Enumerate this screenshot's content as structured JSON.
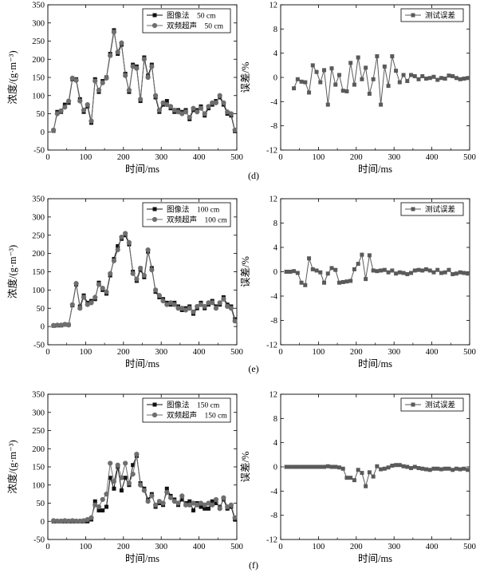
{
  "colors": {
    "image_method": "#111111",
    "ultrasound": "#6e6e6e",
    "error": "#5a5a5a",
    "axis": "#000000"
  },
  "rows": [
    {
      "panel_label": "(d)"
    },
    {
      "panel_label": "(e)"
    },
    {
      "panel_label": "(f)"
    }
  ],
  "chart_data": [
    {
      "type": "line",
      "grid": false,
      "legend_position": "top-right",
      "xlabel": "时间/ms",
      "ylabel": "浓度/(g·m⁻³)",
      "xlim": [
        0,
        500
      ],
      "ylim": [
        -50,
        350
      ],
      "xticks": [
        0,
        100,
        200,
        300,
        400,
        500
      ],
      "yticks": [
        -50,
        0,
        50,
        100,
        150,
        200,
        250,
        300,
        350
      ],
      "x": [
        15,
        25,
        35,
        45,
        55,
        65,
        75,
        85,
        95,
        105,
        115,
        125,
        135,
        145,
        155,
        165,
        175,
        185,
        195,
        205,
        215,
        225,
        235,
        245,
        255,
        265,
        275,
        285,
        295,
        305,
        315,
        325,
        335,
        345,
        355,
        365,
        375,
        385,
        395,
        405,
        415,
        425,
        435,
        445,
        455,
        465,
        475,
        485,
        495
      ],
      "series": [
        {
          "name": "图像法    50 cm",
          "marker": "square",
          "values": [
            3,
            55,
            55,
            75,
            80,
            145,
            145,
            90,
            55,
            70,
            25,
            145,
            110,
            140,
            150,
            215,
            280,
            215,
            240,
            160,
            110,
            185,
            180,
            85,
            205,
            155,
            185,
            95,
            55,
            75,
            85,
            65,
            55,
            60,
            55,
            60,
            35,
            60,
            60,
            70,
            45,
            65,
            75,
            85,
            95,
            75,
            50,
            45,
            2
          ]
        },
        {
          "name": "双频超声    50 cm",
          "marker": "circle",
          "values": [
            5,
            50,
            58,
            68,
            85,
            148,
            142,
            85,
            60,
            75,
            30,
            140,
            115,
            135,
            148,
            210,
            275,
            220,
            245,
            155,
            115,
            180,
            175,
            90,
            200,
            150,
            180,
            100,
            60,
            80,
            75,
            70,
            60,
            55,
            50,
            55,
            40,
            65,
            55,
            65,
            50,
            70,
            80,
            80,
            100,
            80,
            55,
            50,
            5
          ]
        }
      ]
    },
    {
      "type": "line",
      "grid": false,
      "legend_position": "top-right",
      "xlabel": "时间/ms",
      "ylabel": "误差/%",
      "xlim": [
        0,
        500
      ],
      "ylim": [
        -12,
        12
      ],
      "xticks": [
        0,
        100,
        200,
        300,
        400,
        500
      ],
      "yticks": [
        -12,
        -8,
        -4,
        0,
        4,
        8,
        12
      ],
      "x": [
        35,
        45,
        55,
        65,
        75,
        85,
        95,
        105,
        115,
        125,
        135,
        145,
        155,
        165,
        175,
        185,
        195,
        205,
        215,
        225,
        235,
        245,
        255,
        265,
        275,
        285,
        295,
        305,
        315,
        325,
        335,
        345,
        355,
        365,
        375,
        385,
        395,
        405,
        415,
        425,
        435,
        445,
        455,
        465,
        475,
        485,
        495
      ],
      "series": [
        {
          "name": "测试误差",
          "marker": "square",
          "values": [
            -1.8,
            -0.3,
            -0.7,
            -0.8,
            -2.5,
            2.0,
            0.9,
            -0.8,
            1.2,
            -4.5,
            1.5,
            -1.2,
            0.4,
            -2.2,
            -2.3,
            2.4,
            -1.2,
            3.3,
            -0.3,
            1.6,
            -2.7,
            -0.3,
            3.5,
            -4.5,
            1.8,
            -1.4,
            3.5,
            1.1,
            -0.8,
            0.4,
            -0.6,
            0.4,
            0.2,
            -0.3,
            0.2,
            -0.2,
            -0.1,
            0.1,
            -0.4,
            -0.1,
            -0.2,
            0.3,
            0.2,
            -0.1,
            -0.3,
            -0.2,
            -0.1
          ]
        }
      ]
    },
    {
      "type": "line",
      "grid": false,
      "legend_position": "top-right",
      "xlabel": "时间/ms",
      "ylabel": "浓度/(g·m⁻³)",
      "xlim": [
        0,
        500
      ],
      "ylim": [
        -50,
        350
      ],
      "xticks": [
        0,
        100,
        200,
        300,
        400,
        500
      ],
      "yticks": [
        -50,
        0,
        50,
        100,
        150,
        200,
        250,
        300,
        350
      ],
      "x": [
        15,
        25,
        35,
        45,
        55,
        65,
        75,
        85,
        95,
        105,
        115,
        125,
        135,
        145,
        155,
        165,
        175,
        185,
        195,
        205,
        215,
        225,
        235,
        245,
        255,
        265,
        275,
        285,
        295,
        305,
        315,
        325,
        335,
        345,
        355,
        365,
        375,
        385,
        395,
        405,
        415,
        425,
        435,
        445,
        455,
        465,
        475,
        485,
        495
      ],
      "series": [
        {
          "name": "图像法    100 cm",
          "marker": "square",
          "values": [
            2,
            3,
            3,
            5,
            5,
            58,
            115,
            55,
            85,
            65,
            70,
            75,
            120,
            100,
            90,
            140,
            185,
            220,
            240,
            250,
            225,
            150,
            125,
            155,
            135,
            205,
            160,
            95,
            80,
            75,
            65,
            60,
            65,
            55,
            45,
            50,
            55,
            35,
            50,
            65,
            50,
            60,
            70,
            55,
            60,
            80,
            60,
            55,
            20
          ]
        },
        {
          "name": "双频超声    100 cm",
          "marker": "circle",
          "values": [
            3,
            4,
            4,
            6,
            4,
            60,
            118,
            50,
            80,
            60,
            65,
            80,
            115,
            105,
            95,
            145,
            180,
            210,
            245,
            255,
            230,
            145,
            130,
            160,
            140,
            210,
            155,
            100,
            85,
            70,
            60,
            65,
            60,
            50,
            50,
            45,
            50,
            40,
            55,
            60,
            55,
            65,
            65,
            50,
            65,
            75,
            55,
            50,
            15
          ]
        }
      ]
    },
    {
      "type": "line",
      "grid": false,
      "legend_position": "top-right",
      "xlabel": "时间/ms",
      "ylabel": "误差/%",
      "xlim": [
        0,
        500
      ],
      "ylim": [
        -12,
        12
      ],
      "xticks": [
        0,
        100,
        200,
        300,
        400,
        500
      ],
      "yticks": [
        -12,
        -8,
        -4,
        0,
        4,
        8,
        12
      ],
      "x": [
        15,
        25,
        35,
        45,
        55,
        65,
        75,
        85,
        95,
        105,
        115,
        125,
        135,
        145,
        155,
        165,
        175,
        185,
        195,
        205,
        215,
        225,
        235,
        245,
        255,
        265,
        275,
        285,
        295,
        305,
        315,
        325,
        335,
        345,
        355,
        365,
        375,
        385,
        395,
        405,
        415,
        425,
        435,
        445,
        455,
        465,
        475,
        485,
        495
      ],
      "series": [
        {
          "name": "测试误差",
          "marker": "square",
          "values": [
            0,
            0,
            0.1,
            -0.2,
            -1.8,
            -2.2,
            2.2,
            0.4,
            0.2,
            -0.1,
            -1.8,
            -0.3,
            0.6,
            0.3,
            -1.8,
            -1.7,
            -1.6,
            -1.5,
            0.4,
            1.3,
            2.8,
            -1.2,
            2.7,
            0.2,
            0.1,
            0.2,
            0.3,
            -0.1,
            0.2,
            -0.3,
            -0.1,
            -0.2,
            -0.4,
            -0.2,
            0.2,
            0.3,
            0.2,
            0.4,
            0.2,
            -0.1,
            0.3,
            -0.2,
            -0.1,
            0.3,
            -0.4,
            -0.3,
            -0.1,
            -0.2,
            -0.3
          ]
        }
      ]
    },
    {
      "type": "line",
      "grid": false,
      "legend_position": "top-right",
      "xlabel": "时间/ms",
      "ylabel": "浓度/(g·m⁻³)",
      "xlim": [
        0,
        500
      ],
      "ylim": [
        -50,
        350
      ],
      "xticks": [
        0,
        100,
        200,
        300,
        400,
        500
      ],
      "yticks": [
        -50,
        0,
        50,
        100,
        150,
        200,
        250,
        300,
        350
      ],
      "x": [
        15,
        25,
        35,
        45,
        55,
        65,
        75,
        85,
        95,
        105,
        115,
        125,
        135,
        145,
        155,
        165,
        175,
        185,
        195,
        205,
        215,
        225,
        235,
        245,
        255,
        265,
        275,
        285,
        295,
        305,
        315,
        325,
        335,
        345,
        355,
        365,
        375,
        385,
        395,
        405,
        415,
        425,
        435,
        445,
        455,
        465,
        475,
        485,
        495
      ],
      "series": [
        {
          "name": "图像法    150 cm",
          "marker": "square",
          "values": [
            0,
            0,
            0,
            0,
            0,
            0,
            0,
            0,
            0,
            0,
            5,
            55,
            30,
            30,
            40,
            120,
            90,
            150,
            85,
            120,
            100,
            155,
            180,
            105,
            90,
            60,
            75,
            40,
            50,
            45,
            90,
            70,
            60,
            45,
            60,
            50,
            55,
            30,
            50,
            40,
            35,
            35,
            55,
            50,
            40,
            60,
            35,
            40,
            5
          ]
        },
        {
          "name": "双频超声    150 cm",
          "marker": "circle",
          "values": [
            2,
            1,
            1,
            2,
            1,
            2,
            1,
            1,
            2,
            5,
            10,
            45,
            40,
            60,
            75,
            160,
            110,
            155,
            120,
            160,
            105,
            130,
            185,
            100,
            85,
            55,
            70,
            45,
            55,
            50,
            80,
            65,
            55,
            50,
            70,
            45,
            45,
            50,
            45,
            50,
            45,
            50,
            45,
            60,
            35,
            65,
            40,
            45,
            10
          ]
        }
      ]
    },
    {
      "type": "line",
      "grid": false,
      "legend_position": "top-right",
      "xlabel": "时间/ms",
      "ylabel": "误差/%",
      "xlim": [
        0,
        500
      ],
      "ylim": [
        -12,
        12
      ],
      "xticks": [
        0,
        100,
        200,
        300,
        400,
        500
      ],
      "yticks": [
        -12,
        -8,
        -4,
        0,
        4,
        8,
        12
      ],
      "x": [
        15,
        25,
        35,
        45,
        55,
        65,
        75,
        85,
        95,
        105,
        115,
        125,
        135,
        145,
        155,
        165,
        175,
        185,
        195,
        205,
        215,
        225,
        235,
        245,
        255,
        265,
        275,
        285,
        295,
        305,
        315,
        325,
        335,
        345,
        355,
        365,
        375,
        385,
        395,
        405,
        415,
        425,
        435,
        445,
        455,
        465,
        475,
        485,
        495
      ],
      "series": [
        {
          "name": "测试误差",
          "marker": "square",
          "values": [
            0,
            0,
            0,
            0,
            0,
            0,
            0,
            0,
            0,
            0,
            0,
            0.1,
            0,
            0,
            -0.1,
            -0.3,
            -1.8,
            -1.8,
            -2.2,
            -0.5,
            -1.0,
            -3.2,
            -0.9,
            -1.6,
            0.1,
            -0.4,
            -0.3,
            -0.1,
            0.2,
            0.3,
            0.3,
            0.1,
            0,
            -0.2,
            0,
            -0.2,
            -0.3,
            -0.4,
            -0.5,
            -0.3,
            -0.3,
            -0.4,
            -0.3,
            -0.3,
            -0.5,
            -0.3,
            -0.4,
            -0.3,
            -0.5
          ]
        }
      ]
    }
  ]
}
